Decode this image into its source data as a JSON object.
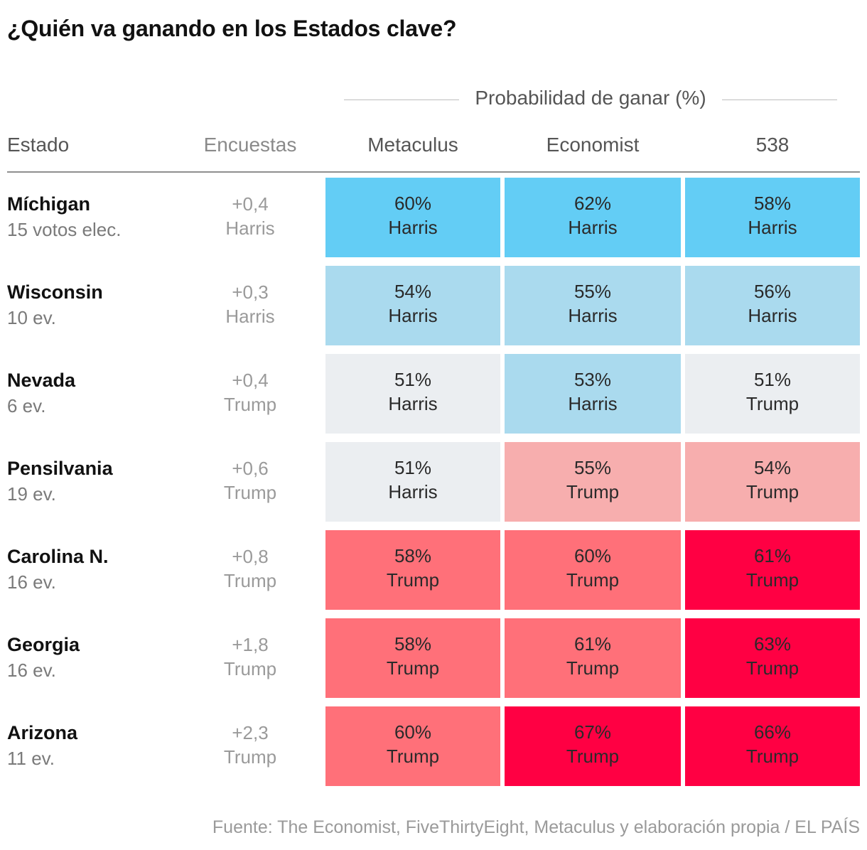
{
  "title": "¿Quién va ganando en los Estados clave?",
  "prob_header": "Probabilidad de ganar (%)",
  "columns": {
    "estado": "Estado",
    "encuestas": "Encuestas",
    "metaculus": "Metaculus",
    "economist": "Economist",
    "fte": "538"
  },
  "colors": {
    "harris_strong": "#63cdf5",
    "harris_light": "#aadaee",
    "tossup": "#ebeef1",
    "trump_light": "#f7aeae",
    "trump_mid": "#ff7079",
    "trump_strong": "#ff0043"
  },
  "source": "Fuente: The Economist, FiveThirtyEight, Metaculus y elaboración propia / EL PAÍS",
  "chart_data": {
    "type": "table",
    "title": "¿Quién va ganando en los Estados clave?",
    "rows": [
      {
        "state": "Míchigan",
        "votes": "15 votos elec.",
        "poll_margin": "+0,4",
        "poll_leader": "Harris",
        "metaculus": {
          "pct": "60%",
          "leader": "Harris",
          "value": 60,
          "color": "#63cdf5"
        },
        "economist": {
          "pct": "62%",
          "leader": "Harris",
          "value": 62,
          "color": "#63cdf5"
        },
        "fte": {
          "pct": "58%",
          "leader": "Harris",
          "value": 58,
          "color": "#63cdf5"
        }
      },
      {
        "state": "Wisconsin",
        "votes": "10 ev.",
        "poll_margin": "+0,3",
        "poll_leader": "Harris",
        "metaculus": {
          "pct": "54%",
          "leader": "Harris",
          "value": 54,
          "color": "#aadaee"
        },
        "economist": {
          "pct": "55%",
          "leader": "Harris",
          "value": 55,
          "color": "#aadaee"
        },
        "fte": {
          "pct": "56%",
          "leader": "Harris",
          "value": 56,
          "color": "#aadaee"
        }
      },
      {
        "state": "Nevada",
        "votes": "6 ev.",
        "poll_margin": "+0,4",
        "poll_leader": "Trump",
        "metaculus": {
          "pct": "51%",
          "leader": "Harris",
          "value": 51,
          "color": "#ebeef1"
        },
        "economist": {
          "pct": "53%",
          "leader": "Harris",
          "value": 53,
          "color": "#aadaee"
        },
        "fte": {
          "pct": "51%",
          "leader": "Trump",
          "value": 51,
          "color": "#ebeef1"
        }
      },
      {
        "state": "Pensilvania",
        "votes": "19 ev.",
        "poll_margin": "+0,6",
        "poll_leader": "Trump",
        "metaculus": {
          "pct": "51%",
          "leader": "Harris",
          "value": 51,
          "color": "#ebeef1"
        },
        "economist": {
          "pct": "55%",
          "leader": "Trump",
          "value": 55,
          "color": "#f7aeae"
        },
        "fte": {
          "pct": "54%",
          "leader": "Trump",
          "value": 54,
          "color": "#f7aeae"
        }
      },
      {
        "state": "Carolina N.",
        "votes": "16 ev.",
        "poll_margin": "+0,8",
        "poll_leader": "Trump",
        "metaculus": {
          "pct": "58%",
          "leader": "Trump",
          "value": 58,
          "color": "#ff7079"
        },
        "economist": {
          "pct": "60%",
          "leader": "Trump",
          "value": 60,
          "color": "#ff7079"
        },
        "fte": {
          "pct": "61%",
          "leader": "Trump",
          "value": 61,
          "color": "#ff0043"
        }
      },
      {
        "state": "Georgia",
        "votes": "16 ev.",
        "poll_margin": "+1,8",
        "poll_leader": "Trump",
        "metaculus": {
          "pct": "58%",
          "leader": "Trump",
          "value": 58,
          "color": "#ff7079"
        },
        "economist": {
          "pct": "61%",
          "leader": "Trump",
          "value": 61,
          "color": "#ff7079"
        },
        "fte": {
          "pct": "63%",
          "leader": "Trump",
          "value": 63,
          "color": "#ff0043"
        }
      },
      {
        "state": "Arizona",
        "votes": "11 ev.",
        "poll_margin": "+2,3",
        "poll_leader": "Trump",
        "metaculus": {
          "pct": "60%",
          "leader": "Trump",
          "value": 60,
          "color": "#ff7079"
        },
        "economist": {
          "pct": "67%",
          "leader": "Trump",
          "value": 67,
          "color": "#ff0043"
        },
        "fte": {
          "pct": "66%",
          "leader": "Trump",
          "value": 66,
          "color": "#ff0043"
        }
      }
    ]
  }
}
